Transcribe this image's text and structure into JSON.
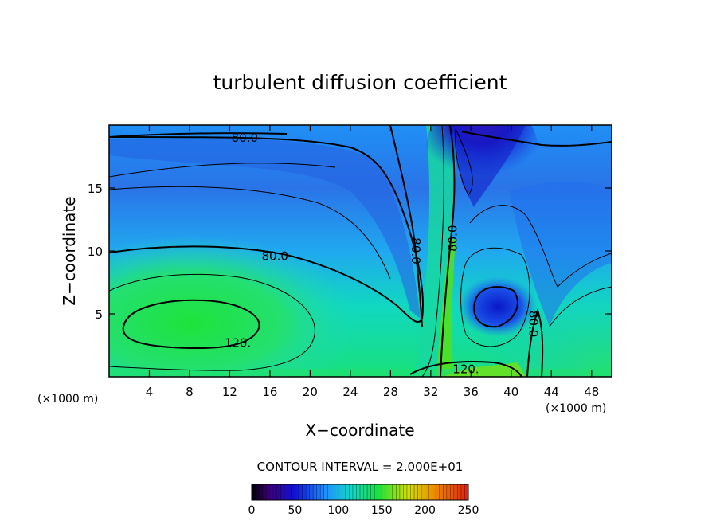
{
  "chart_data": {
    "type": "heatmap",
    "title": "turbulent diffusion coefficient",
    "xlabel": "X−coordinate",
    "ylabel": "Z−coordinate",
    "x_unit_left": "(×1000 m)",
    "x_unit_right": "(×1000 m)",
    "xlim": [
      0,
      50
    ],
    "ylim": [
      0,
      20
    ],
    "xticks": [
      4,
      8,
      12,
      16,
      20,
      24,
      28,
      32,
      36,
      40,
      44,
      48
    ],
    "yticks": [
      5,
      10,
      15
    ],
    "contour_interval_text": "CONTOUR INTERVAL = 2.000E+01",
    "contour_labels": [
      {
        "text": "80.0",
        "x": 13.5,
        "y": 19.0
      },
      {
        "text": "80.0",
        "x": 16.5,
        "y": 9.6
      },
      {
        "text": "120.",
        "x": 12.8,
        "y": 2.7
      },
      {
        "text": "80.0",
        "x": 30.5,
        "y": 10.0
      },
      {
        "text": "80.0",
        "x": 34.2,
        "y": 11.0
      },
      {
        "text": "80.0",
        "x": 42.2,
        "y": 4.2
      },
      {
        "text": "120.",
        "x": 35.5,
        "y": 0.6
      }
    ],
    "colorbar": {
      "min": 0,
      "max": 250,
      "ticks": [
        0,
        50,
        100,
        150,
        200,
        250
      ]
    },
    "colors": {
      "purple": "#3a007a",
      "blue": "#1010d8",
      "sky": "#2090ff",
      "cyan": "#10d8c8",
      "green": "#18e040",
      "yellow": "#d0e000",
      "red": "#e02010"
    }
  }
}
